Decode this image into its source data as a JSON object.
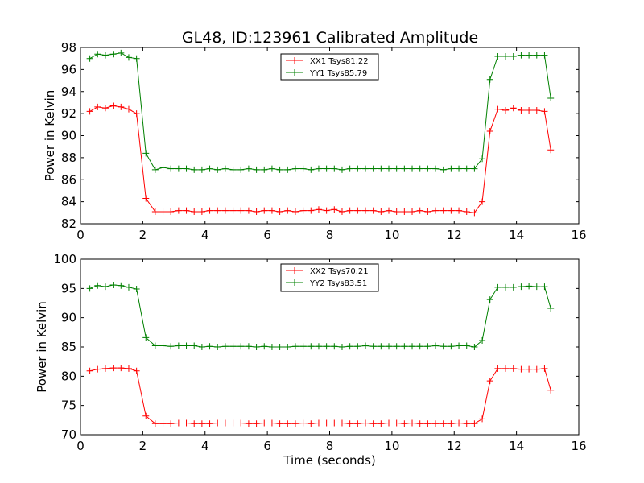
{
  "chart_data": [
    {
      "type": "line",
      "title": "GL48, ID:123961 Calibrated Amplitude",
      "xlabel": "",
      "ylabel": "Power in Kelvin",
      "xlim": [
        0,
        16
      ],
      "ylim": [
        82,
        98
      ],
      "xticks": [
        0,
        2,
        4,
        6,
        8,
        10,
        12,
        14,
        16
      ],
      "yticks": [
        82,
        84,
        86,
        88,
        90,
        92,
        94,
        96,
        98
      ],
      "grid": false,
      "legend_position": "top-center",
      "x": [
        0.3,
        0.55,
        0.8,
        1.05,
        1.3,
        1.55,
        1.8,
        2.1,
        2.4,
        2.65,
        2.9,
        3.15,
        3.4,
        3.65,
        3.9,
        4.15,
        4.4,
        4.65,
        4.9,
        5.15,
        5.4,
        5.65,
        5.9,
        6.15,
        6.4,
        6.65,
        6.9,
        7.15,
        7.4,
        7.65,
        7.9,
        8.15,
        8.4,
        8.65,
        8.9,
        9.15,
        9.4,
        9.65,
        9.9,
        10.15,
        10.4,
        10.65,
        10.9,
        11.15,
        11.4,
        11.65,
        11.9,
        12.15,
        12.4,
        12.65,
        12.9,
        13.15,
        13.4,
        13.65,
        13.9,
        14.15,
        14.4,
        14.65,
        14.9,
        15.1
      ],
      "series": [
        {
          "name": "XX1 Tsys81.22",
          "color": "#ff0000",
          "values": [
            92.2,
            92.6,
            92.5,
            92.7,
            92.6,
            92.4,
            92.0,
            84.3,
            83.1,
            83.1,
            83.1,
            83.2,
            83.2,
            83.1,
            83.1,
            83.2,
            83.2,
            83.2,
            83.2,
            83.2,
            83.2,
            83.1,
            83.2,
            83.2,
            83.1,
            83.2,
            83.1,
            83.2,
            83.2,
            83.3,
            83.2,
            83.3,
            83.1,
            83.2,
            83.2,
            83.2,
            83.2,
            83.1,
            83.2,
            83.1,
            83.1,
            83.1,
            83.2,
            83.1,
            83.2,
            83.2,
            83.2,
            83.2,
            83.1,
            83.0,
            84.0,
            90.4,
            92.4,
            92.3,
            92.5,
            92.3,
            92.3,
            92.3,
            92.2,
            88.7
          ]
        },
        {
          "name": "YY1 Tsys85.79",
          "color": "#008000",
          "values": [
            97.0,
            97.4,
            97.3,
            97.4,
            97.5,
            97.1,
            97.0,
            88.4,
            86.9,
            87.1,
            87.0,
            87.0,
            87.0,
            86.9,
            86.9,
            87.0,
            86.9,
            87.0,
            86.9,
            86.9,
            87.0,
            86.9,
            86.9,
            87.0,
            86.9,
            86.9,
            87.0,
            87.0,
            86.9,
            87.0,
            87.0,
            87.0,
            86.9,
            87.0,
            87.0,
            87.0,
            87.0,
            87.0,
            87.0,
            87.0,
            87.0,
            87.0,
            87.0,
            87.0,
            87.0,
            86.9,
            87.0,
            87.0,
            87.0,
            87.0,
            87.9,
            95.1,
            97.2,
            97.2,
            97.2,
            97.3,
            97.3,
            97.3,
            97.3,
            93.4
          ]
        }
      ]
    },
    {
      "type": "line",
      "title": "",
      "xlabel": "Time (seconds)",
      "ylabel": "Power in Kelvin",
      "xlim": [
        0,
        16
      ],
      "ylim": [
        70,
        100
      ],
      "xticks": [
        0,
        2,
        4,
        6,
        8,
        10,
        12,
        14,
        16
      ],
      "yticks": [
        70,
        75,
        80,
        85,
        90,
        95,
        100
      ],
      "grid": false,
      "legend_position": "top-center",
      "x": [
        0.3,
        0.55,
        0.8,
        1.05,
        1.3,
        1.55,
        1.8,
        2.1,
        2.4,
        2.65,
        2.9,
        3.15,
        3.4,
        3.65,
        3.9,
        4.15,
        4.4,
        4.65,
        4.9,
        5.15,
        5.4,
        5.65,
        5.9,
        6.15,
        6.4,
        6.65,
        6.9,
        7.15,
        7.4,
        7.65,
        7.9,
        8.15,
        8.4,
        8.65,
        8.9,
        9.15,
        9.4,
        9.65,
        9.9,
        10.15,
        10.4,
        10.65,
        10.9,
        11.15,
        11.4,
        11.65,
        11.9,
        12.15,
        12.4,
        12.65,
        12.9,
        13.15,
        13.4,
        13.65,
        13.9,
        14.15,
        14.4,
        14.65,
        14.9,
        15.1
      ],
      "series": [
        {
          "name": "XX2 Tsys70.21",
          "color": "#ff0000",
          "values": [
            80.9,
            81.2,
            81.3,
            81.4,
            81.4,
            81.3,
            80.9,
            73.2,
            71.9,
            71.9,
            71.9,
            72.0,
            72.0,
            71.9,
            71.9,
            71.9,
            72.0,
            72.0,
            72.0,
            72.0,
            71.9,
            71.9,
            72.0,
            72.0,
            71.9,
            71.9,
            71.9,
            72.0,
            71.9,
            72.0,
            72.0,
            72.0,
            72.0,
            71.9,
            71.9,
            72.0,
            71.9,
            71.9,
            72.0,
            72.0,
            71.9,
            72.0,
            71.9,
            71.9,
            71.9,
            71.9,
            71.9,
            72.0,
            71.9,
            71.9,
            72.7,
            79.2,
            81.3,
            81.3,
            81.3,
            81.2,
            81.2,
            81.2,
            81.3,
            77.6
          ]
        },
        {
          "name": "YY2 Tsys83.51",
          "color": "#008000",
          "values": [
            95.0,
            95.5,
            95.3,
            95.6,
            95.5,
            95.2,
            94.9,
            86.6,
            85.2,
            85.2,
            85.1,
            85.2,
            85.2,
            85.2,
            85.0,
            85.1,
            85.0,
            85.1,
            85.1,
            85.1,
            85.1,
            85.0,
            85.1,
            85.0,
            85.0,
            85.0,
            85.1,
            85.1,
            85.1,
            85.1,
            85.1,
            85.1,
            85.0,
            85.1,
            85.1,
            85.2,
            85.1,
            85.1,
            85.1,
            85.1,
            85.1,
            85.1,
            85.1,
            85.1,
            85.2,
            85.1,
            85.1,
            85.2,
            85.2,
            85.0,
            86.1,
            93.1,
            95.2,
            95.2,
            95.2,
            95.3,
            95.4,
            95.3,
            95.3,
            91.6
          ]
        }
      ]
    }
  ]
}
